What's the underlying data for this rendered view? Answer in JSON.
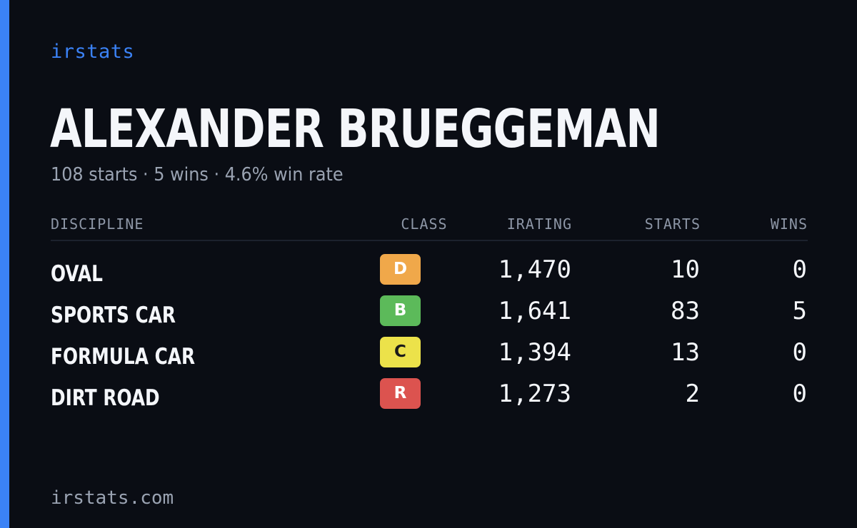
{
  "colors": {
    "accent": "#3b82f6",
    "background": "#0a0d14"
  },
  "brand": "irstats",
  "driver": {
    "name": "ALEXANDER BRUEGGEMAN",
    "summary": "108 starts · 5 wins · 4.6% win rate"
  },
  "table": {
    "headers": {
      "discipline": "DISCIPLINE",
      "class": "CLASS",
      "irating": "IRATING",
      "starts": "STARTS",
      "wins": "WINS"
    },
    "rows": [
      {
        "discipline": "OVAL",
        "class": "D",
        "class_color": "#f0a84a",
        "class_text_color": "#ffffff",
        "irating": "1,470",
        "starts": "10",
        "wins": "0"
      },
      {
        "discipline": "SPORTS CAR",
        "class": "B",
        "class_color": "#5cba5a",
        "class_text_color": "#ffffff",
        "irating": "1,641",
        "starts": "83",
        "wins": "5"
      },
      {
        "discipline": "FORMULA CAR",
        "class": "C",
        "class_color": "#ece24a",
        "class_text_color": "#1a1a1a",
        "irating": "1,394",
        "starts": "13",
        "wins": "0"
      },
      {
        "discipline": "DIRT ROAD",
        "class": "R",
        "class_color": "#dc534f",
        "class_text_color": "#ffffff",
        "irating": "1,273",
        "starts": "2",
        "wins": "0"
      }
    ]
  },
  "footer": {
    "domain": "irstats.com"
  }
}
